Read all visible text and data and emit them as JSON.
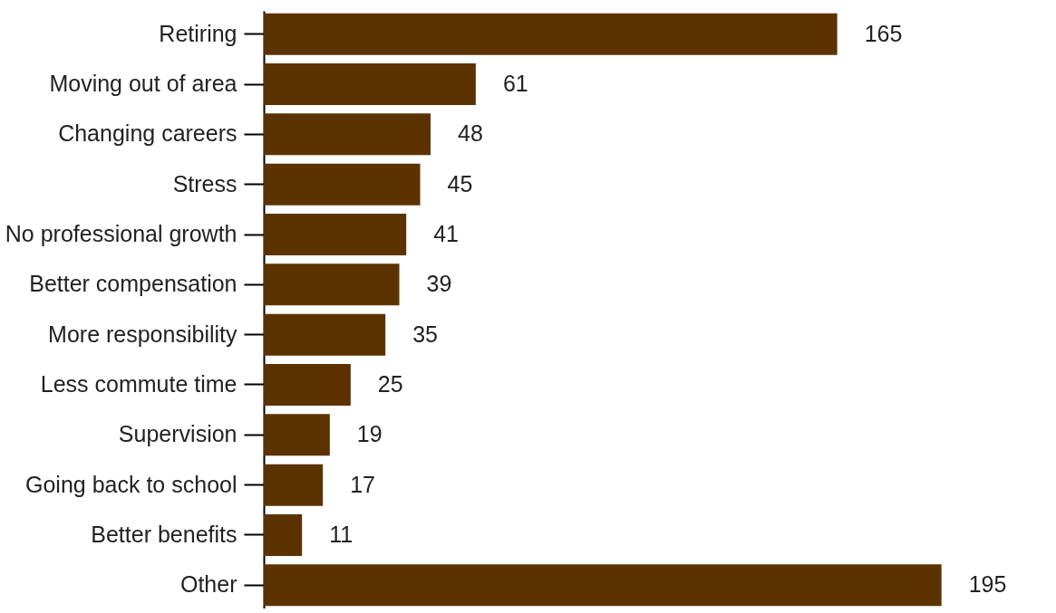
{
  "chart_data": {
    "type": "bar",
    "orientation": "horizontal",
    "data_labels": true,
    "grid": false,
    "categories": [
      "Retiring",
      "Moving out of area",
      "Changing careers",
      "Stress",
      "No professional growth",
      "Better compensation",
      "More responsibility",
      "Less commute time",
      "Supervision",
      "Going back to school",
      "Better benefits",
      "Other"
    ],
    "values": [
      165,
      61,
      48,
      45,
      41,
      39,
      35,
      25,
      19,
      17,
      11,
      195
    ],
    "color": "#5c3300"
  }
}
